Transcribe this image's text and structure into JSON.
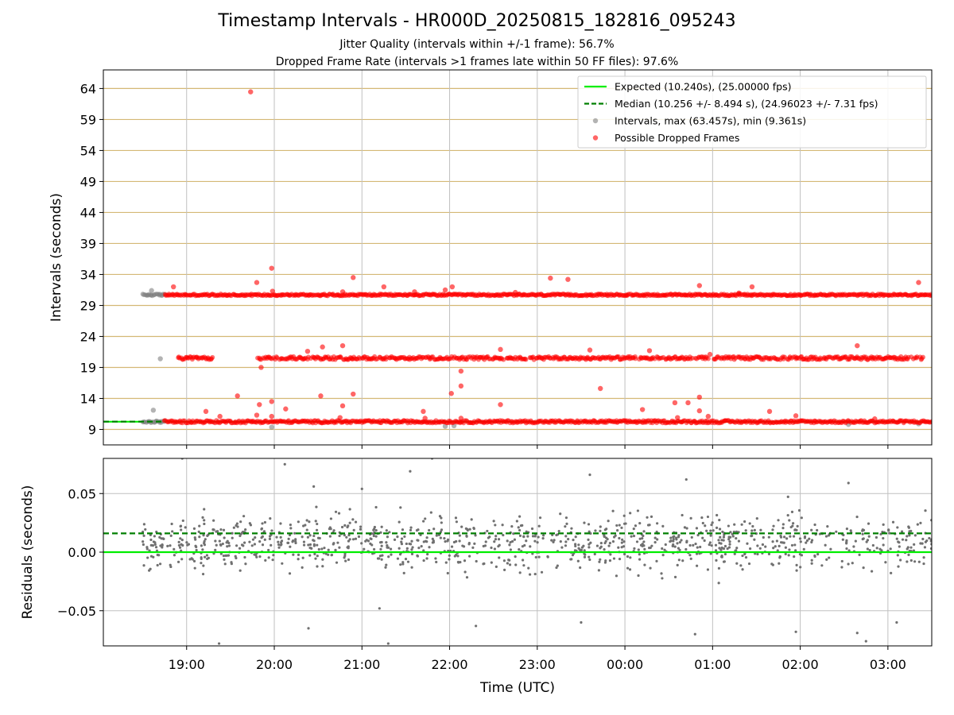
{
  "figure": {
    "title": "Timestamp Intervals - HR000D_20250815_182816_095243",
    "subtitle_jitter": "Jitter Quality (intervals within +/-1 frame): 56.7%",
    "subtitle_dropped": "Dropped Frame Rate (intervals >1 frames late within 50 FF files): 97.6%"
  },
  "colors": {
    "expected_line": "#00ee00",
    "median_line": "#007f00",
    "intervals_points": "#808080",
    "dropped_points": "#ff0000",
    "top_gridlines": "#d4b875",
    "vertical_gridlines": "#c0c0c0",
    "residual_points": "#707070"
  },
  "chart_data": [
    {
      "type": "scatter",
      "panel": "intervals",
      "ylabel": "Intervals (seconds)",
      "xlabel": "",
      "x_unit": "hours since 00:00 UTC on 2025-08-15",
      "xlim": [
        18.05,
        27.5
      ],
      "ylim": [
        6.5,
        67
      ],
      "y_ticks": [
        9,
        14,
        19,
        24,
        29,
        34,
        39,
        44,
        49,
        54,
        59,
        64
      ],
      "x_ticks": [
        {
          "x": 19,
          "label": "19:00"
        },
        {
          "x": 20,
          "label": "20:00"
        },
        {
          "x": 21,
          "label": "21:00"
        },
        {
          "x": 22,
          "label": "22:00"
        },
        {
          "x": 23,
          "label": "23:00"
        },
        {
          "x": 24,
          "label": "00:00"
        },
        {
          "x": 25,
          "label": "01:00"
        },
        {
          "x": 26,
          "label": "02:00"
        },
        {
          "x": 27,
          "label": "03:00"
        }
      ],
      "grid": true,
      "legend_position": "top-right",
      "lines": {
        "expected": {
          "label": "Expected (10.240s), (25.00000 fps)",
          "y": 10.24,
          "x_range": [
            18.05,
            27.5
          ],
          "style": "solid"
        },
        "median": {
          "label": "Median (10.256 +/- 8.494 s), (24.96023 +/- 7.31 fps)",
          "y": 10.256,
          "x_range": [
            18.05,
            18.75
          ],
          "style": "dashed"
        }
      },
      "series": [
        {
          "name": "Intervals, max (63.457s), min (9.361s)",
          "bands": [
            {
              "x_range": [
                18.5,
                18.75
              ],
              "y": 30.7,
              "spread": 0.15
            },
            {
              "x_range": [
                18.5,
                18.75
              ],
              "y": 10.24,
              "spread": 0.15
            }
          ],
          "points": [
            {
              "x": 18.6,
              "y": 31.4
            },
            {
              "x": 18.62,
              "y": 12.1
            },
            {
              "x": 18.7,
              "y": 20.4
            },
            {
              "x": 19.97,
              "y": 9.36
            },
            {
              "x": 21.95,
              "y": 9.5
            },
            {
              "x": 22.05,
              "y": 9.6
            },
            {
              "x": 26.55,
              "y": 9.8
            },
            {
              "x": 27.35,
              "y": 9.9
            }
          ]
        },
        {
          "name": "Possible Dropped Frames",
          "bands": [
            {
              "x_range": [
                18.75,
                27.5
              ],
              "y": 30.7,
              "spread": 0.15
            },
            {
              "x_range": [
                18.75,
                27.5
              ],
              "y": 10.24,
              "spread": 0.2
            },
            {
              "x_range": [
                18.9,
                27.4
              ],
              "y": 20.5,
              "spread": 0.25,
              "gaps": [
                [
                  19.3,
                  19.8
                ],
                [
                  24.95,
                  25.0
                ]
              ]
            }
          ],
          "points": [
            {
              "x": 19.73,
              "y": 63.46
            },
            {
              "x": 19.97,
              "y": 35.0
            },
            {
              "x": 19.8,
              "y": 32.7
            },
            {
              "x": 18.85,
              "y": 32.0
            },
            {
              "x": 20.9,
              "y": 33.5
            },
            {
              "x": 21.25,
              "y": 32.0
            },
            {
              "x": 21.95,
              "y": 31.5
            },
            {
              "x": 22.03,
              "y": 32.0
            },
            {
              "x": 23.15,
              "y": 33.4
            },
            {
              "x": 23.35,
              "y": 33.2
            },
            {
              "x": 24.85,
              "y": 32.2
            },
            {
              "x": 25.45,
              "y": 32.0
            },
            {
              "x": 27.35,
              "y": 32.7
            },
            {
              "x": 19.98,
              "y": 31.3
            },
            {
              "x": 20.78,
              "y": 31.2
            },
            {
              "x": 21.6,
              "y": 31.2
            },
            {
              "x": 22.75,
              "y": 31.1
            },
            {
              "x": 25.3,
              "y": 31.0
            },
            {
              "x": 20.55,
              "y": 22.3
            },
            {
              "x": 20.78,
              "y": 22.5
            },
            {
              "x": 20.38,
              "y": 21.6
            },
            {
              "x": 22.58,
              "y": 21.9
            },
            {
              "x": 23.6,
              "y": 21.8
            },
            {
              "x": 24.28,
              "y": 21.7
            },
            {
              "x": 24.97,
              "y": 21.1
            },
            {
              "x": 26.65,
              "y": 22.5
            },
            {
              "x": 19.85,
              "y": 19.0
            },
            {
              "x": 22.13,
              "y": 18.4
            },
            {
              "x": 22.13,
              "y": 16.0
            },
            {
              "x": 22.02,
              "y": 14.8
            },
            {
              "x": 23.72,
              "y": 15.6
            },
            {
              "x": 19.58,
              "y": 14.4
            },
            {
              "x": 20.53,
              "y": 14.4
            },
            {
              "x": 20.9,
              "y": 14.7
            },
            {
              "x": 24.85,
              "y": 14.2
            },
            {
              "x": 19.83,
              "y": 13.0
            },
            {
              "x": 19.97,
              "y": 13.5
            },
            {
              "x": 20.78,
              "y": 12.8
            },
            {
              "x": 22.58,
              "y": 13.0
            },
            {
              "x": 24.57,
              "y": 13.3
            },
            {
              "x": 24.72,
              "y": 13.3
            },
            {
              "x": 20.13,
              "y": 12.3
            },
            {
              "x": 19.22,
              "y": 11.9
            },
            {
              "x": 21.7,
              "y": 11.9
            },
            {
              "x": 24.2,
              "y": 12.2
            },
            {
              "x": 24.85,
              "y": 12.0
            },
            {
              "x": 25.65,
              "y": 11.9
            },
            {
              "x": 19.38,
              "y": 11.1
            },
            {
              "x": 19.8,
              "y": 11.3
            },
            {
              "x": 19.97,
              "y": 11.1
            },
            {
              "x": 20.75,
              "y": 10.9
            },
            {
              "x": 21.72,
              "y": 10.8
            },
            {
              "x": 22.13,
              "y": 10.8
            },
            {
              "x": 24.6,
              "y": 10.9
            },
            {
              "x": 24.95,
              "y": 11.1
            },
            {
              "x": 25.95,
              "y": 11.2
            },
            {
              "x": 26.85,
              "y": 10.7
            }
          ]
        }
      ],
      "legend": {
        "expected_label": "Expected (10.240s), (25.00000 fps)",
        "median_label": "Median (10.256 +/- 8.494 s), (24.96023 +/- 7.31 fps)",
        "intervals_label": "Intervals, max (63.457s), min (9.361s)",
        "dropped_label": "Possible Dropped Frames"
      }
    },
    {
      "type": "scatter",
      "panel": "residuals",
      "xlabel": "Time (UTC)",
      "ylabel": "Residuals (seconds)",
      "x_unit": "hours since 00:00 UTC on 2025-08-15",
      "xlim": [
        18.05,
        27.5
      ],
      "ylim": [
        -0.08,
        0.08
      ],
      "y_ticks": [
        {
          "y": 0.05,
          "label": "0.05"
        },
        {
          "y": 0.0,
          "label": "0.00"
        },
        {
          "y": -0.05,
          "label": "−0.05"
        }
      ],
      "x_ticks": [
        {
          "x": 19,
          "label": "19:00"
        },
        {
          "x": 20,
          "label": "20:00"
        },
        {
          "x": 21,
          "label": "21:00"
        },
        {
          "x": 22,
          "label": "22:00"
        },
        {
          "x": 23,
          "label": "23:00"
        },
        {
          "x": 24,
          "label": "00:00"
        },
        {
          "x": 25,
          "label": "01:00"
        },
        {
          "x": 26,
          "label": "02:00"
        },
        {
          "x": 27,
          "label": "03:00"
        }
      ],
      "grid": true,
      "lines": {
        "zero": {
          "y": 0.0,
          "style": "solid"
        },
        "median_offset": {
          "y": 0.016,
          "style": "dashed"
        }
      },
      "series": [
        {
          "name": "Residuals",
          "distribution": {
            "x_range": [
              18.5,
              27.5
            ],
            "center": 0.008,
            "spread": 0.018,
            "count": 1100
          },
          "points": [
            {
              "x": 18.95,
              "y": 0.08
            },
            {
              "x": 20.12,
              "y": 0.075
            },
            {
              "x": 21.55,
              "y": 0.069
            },
            {
              "x": 21.8,
              "y": 0.08
            },
            {
              "x": 23.6,
              "y": 0.066
            },
            {
              "x": 24.7,
              "y": 0.062
            },
            {
              "x": 26.55,
              "y": 0.059
            },
            {
              "x": 20.45,
              "y": 0.056
            },
            {
              "x": 21.0,
              "y": 0.054
            },
            {
              "x": 19.37,
              "y": -0.078
            },
            {
              "x": 21.3,
              "y": -0.078
            },
            {
              "x": 26.75,
              "y": -0.076
            },
            {
              "x": 22.3,
              "y": -0.063
            },
            {
              "x": 23.5,
              "y": -0.06
            },
            {
              "x": 24.8,
              "y": -0.07
            },
            {
              "x": 25.95,
              "y": -0.068
            },
            {
              "x": 20.39,
              "y": -0.065
            },
            {
              "x": 21.2,
              "y": -0.048
            },
            {
              "x": 26.65,
              "y": -0.069
            },
            {
              "x": 27.1,
              "y": -0.06
            }
          ]
        }
      ]
    }
  ]
}
